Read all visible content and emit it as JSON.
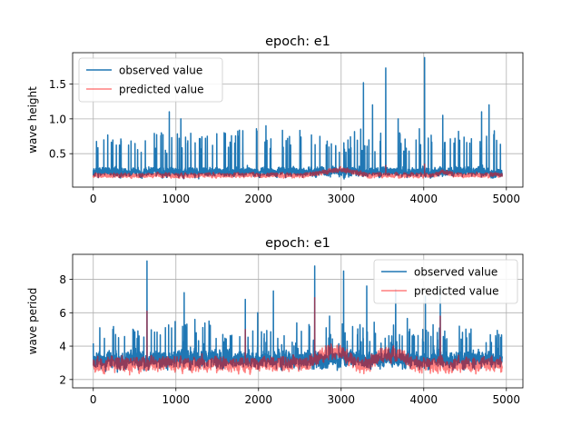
{
  "chart_data": [
    {
      "type": "line",
      "title": "epoch: e1",
      "xlabel": "",
      "ylabel": "wave height",
      "xlim": [
        -250,
        5200
      ],
      "ylim": [
        0.02,
        1.95
      ],
      "xticks": [
        0,
        1000,
        2000,
        3000,
        4000,
        5000
      ],
      "yticks": [
        0.5,
        1.0,
        1.5
      ],
      "ytick_labels": [
        "0.5",
        "1.0",
        "1.5"
      ],
      "grid": true,
      "legend_position": "upper-left",
      "series": [
        {
          "name": "observed value",
          "color": "#1f77b4",
          "opacity": 1.0,
          "n_points": 4950,
          "baseline": 0.24,
          "noise": 0.07,
          "spike_rate": 0.03,
          "spike_range": [
            0.3,
            0.6
          ],
          "peaks": [
            [
              920,
              1.1
            ],
            [
              1060,
              1.0
            ],
            [
              1380,
              0.75
            ],
            [
              1810,
              0.83
            ],
            [
              2090,
              0.9
            ],
            [
              3270,
              1.52
            ],
            [
              3380,
              1.2
            ],
            [
              3540,
              1.73
            ],
            [
              3690,
              1.0
            ],
            [
              4010,
              1.88
            ],
            [
              4230,
              1.05
            ],
            [
              4700,
              1.1
            ],
            [
              4760,
              0.75
            ],
            [
              4790,
              1.2
            ]
          ]
        },
        {
          "name": "predicted value",
          "color": "#ff0000",
          "opacity": 0.5,
          "n_points": 4950,
          "baseline": 0.19,
          "noise": 0.035,
          "bumps": [
            [
              2600,
              3300,
              0.07
            ],
            [
              4100,
              4400,
              0.04
            ]
          ],
          "peaks": [
            [
              3540,
              0.33
            ],
            [
              4010,
              0.35
            ]
          ]
        }
      ]
    },
    {
      "type": "line",
      "title": "epoch: e1",
      "xlabel": "",
      "ylabel": "wave period",
      "xlim": [
        -250,
        5200
      ],
      "ylim": [
        1.5,
        9.5
      ],
      "xticks": [
        0,
        1000,
        2000,
        3000,
        4000,
        5000
      ],
      "yticks": [
        2,
        4,
        6,
        8
      ],
      "ytick_labels": [
        "2",
        "4",
        "6",
        "8"
      ],
      "grid": true,
      "legend_position": "upper-right",
      "series": [
        {
          "name": "observed value",
          "color": "#1f77b4",
          "opacity": 1.0,
          "n_points": 4950,
          "baseline": 3.2,
          "noise": 0.55,
          "spike_rate": 0.025,
          "spike_range": [
            1.0,
            2.0
          ],
          "peaks": [
            [
              650,
              9.1
            ],
            [
              1100,
              7.2
            ],
            [
              1230,
              5.6
            ],
            [
              1840,
              6.8
            ],
            [
              1990,
              6.0
            ],
            [
              2180,
              7.3
            ],
            [
              2680,
              8.8
            ],
            [
              2860,
              5.8
            ],
            [
              3030,
              8.5
            ],
            [
              3310,
              7.6
            ],
            [
              3660,
              7.4
            ],
            [
              4020,
              7.0
            ],
            [
              4200,
              7.5
            ]
          ]
        },
        {
          "name": "predicted value",
          "color": "#ff0000",
          "opacity": 0.5,
          "n_points": 4950,
          "baseline": 2.9,
          "noise": 0.45,
          "bumps": [
            [
              2600,
              3200,
              0.8
            ],
            [
              3300,
              3900,
              0.6
            ]
          ],
          "peaks": [
            [
              650,
              6.1
            ],
            [
              2680,
              6.9
            ],
            [
              1840,
              5.0
            ],
            [
              4200,
              5.8
            ]
          ]
        }
      ]
    }
  ]
}
